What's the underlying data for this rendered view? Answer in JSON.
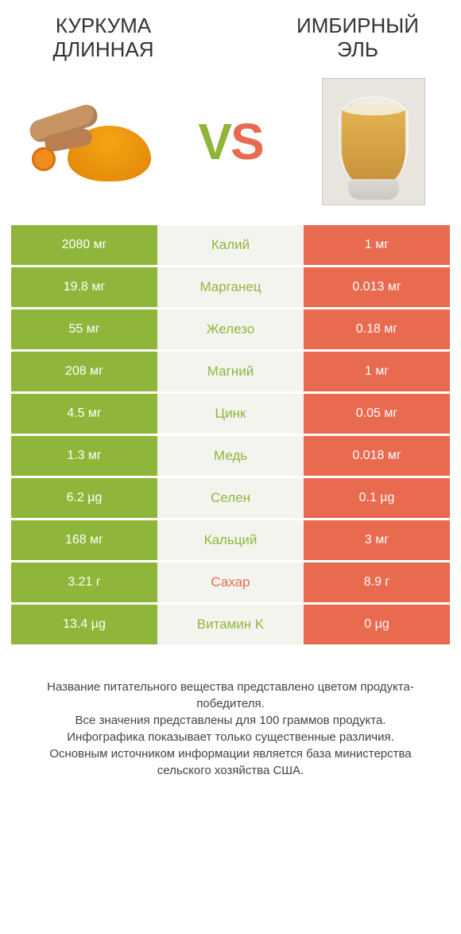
{
  "colors": {
    "green": "#8fb63a",
    "orange": "#e86a4f",
    "mid_bg": "#f4f4ef"
  },
  "left_title": "КУРКУМА ДЛИННАЯ",
  "right_title": "ИМБИРНЫЙ ЭЛЬ",
  "vs_v": "V",
  "vs_s": "S",
  "rows": [
    {
      "nutrient": "Калий",
      "left": "2080 мг",
      "right": "1 мг",
      "winner": "left"
    },
    {
      "nutrient": "Марганец",
      "left": "19.8 мг",
      "right": "0.013 мг",
      "winner": "left"
    },
    {
      "nutrient": "Железо",
      "left": "55 мг",
      "right": "0.18 мг",
      "winner": "left"
    },
    {
      "nutrient": "Магний",
      "left": "208 мг",
      "right": "1 мг",
      "winner": "left"
    },
    {
      "nutrient": "Цинк",
      "left": "4.5 мг",
      "right": "0.05 мг",
      "winner": "left"
    },
    {
      "nutrient": "Медь",
      "left": "1.3 мг",
      "right": "0.018 мг",
      "winner": "left"
    },
    {
      "nutrient": "Селен",
      "left": "6.2 µg",
      "right": "0.1 µg",
      "winner": "left"
    },
    {
      "nutrient": "Кальций",
      "left": "168 мг",
      "right": "3 мг",
      "winner": "left"
    },
    {
      "nutrient": "Сахар",
      "left": "3.21 г",
      "right": "8.9 г",
      "winner": "right"
    },
    {
      "nutrient": "Витамин K",
      "left": "13.4 µg",
      "right": "0 µg",
      "winner": "left"
    }
  ],
  "footer": [
    "Название питательного вещества представлено цветом продукта-победителя.",
    "Все значения представлены для 100 граммов продукта.",
    "Инфографика показывает только существенные различия.",
    "Основным источником информации является база министерства сельского хозяйства США."
  ]
}
